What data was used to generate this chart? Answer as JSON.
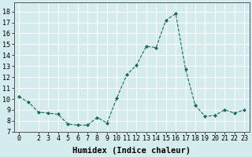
{
  "x": [
    0,
    1,
    2,
    3,
    4,
    5,
    6,
    7,
    8,
    9,
    10,
    11,
    12,
    13,
    14,
    15,
    16,
    17,
    18,
    19,
    20,
    21,
    22,
    23
  ],
  "y": [
    10.2,
    9.7,
    8.8,
    8.7,
    8.6,
    7.7,
    7.6,
    7.6,
    8.3,
    7.8,
    10.1,
    12.2,
    13.1,
    14.8,
    14.7,
    17.2,
    17.8,
    12.7,
    9.4,
    8.4,
    8.5,
    9.0,
    8.7,
    9.0
  ],
  "line_color": "#1a6b5a",
  "marker_color": "#1a6b5a",
  "bg_color": "#d4eced",
  "grid_color": "#ffffff",
  "xlabel": "Humidex (Indice chaleur)",
  "xlabel_fontsize": 7.5,
  "xlim": [
    -0.5,
    23.5
  ],
  "ylim": [
    7,
    18.8
  ],
  "yticks": [
    7,
    8,
    9,
    10,
    11,
    12,
    13,
    14,
    15,
    16,
    17,
    18
  ],
  "xticks": [
    0,
    2,
    3,
    4,
    5,
    6,
    7,
    8,
    9,
    10,
    11,
    12,
    13,
    14,
    15,
    16,
    17,
    18,
    19,
    20,
    21,
    22,
    23
  ],
  "tick_fontsize": 6.0
}
